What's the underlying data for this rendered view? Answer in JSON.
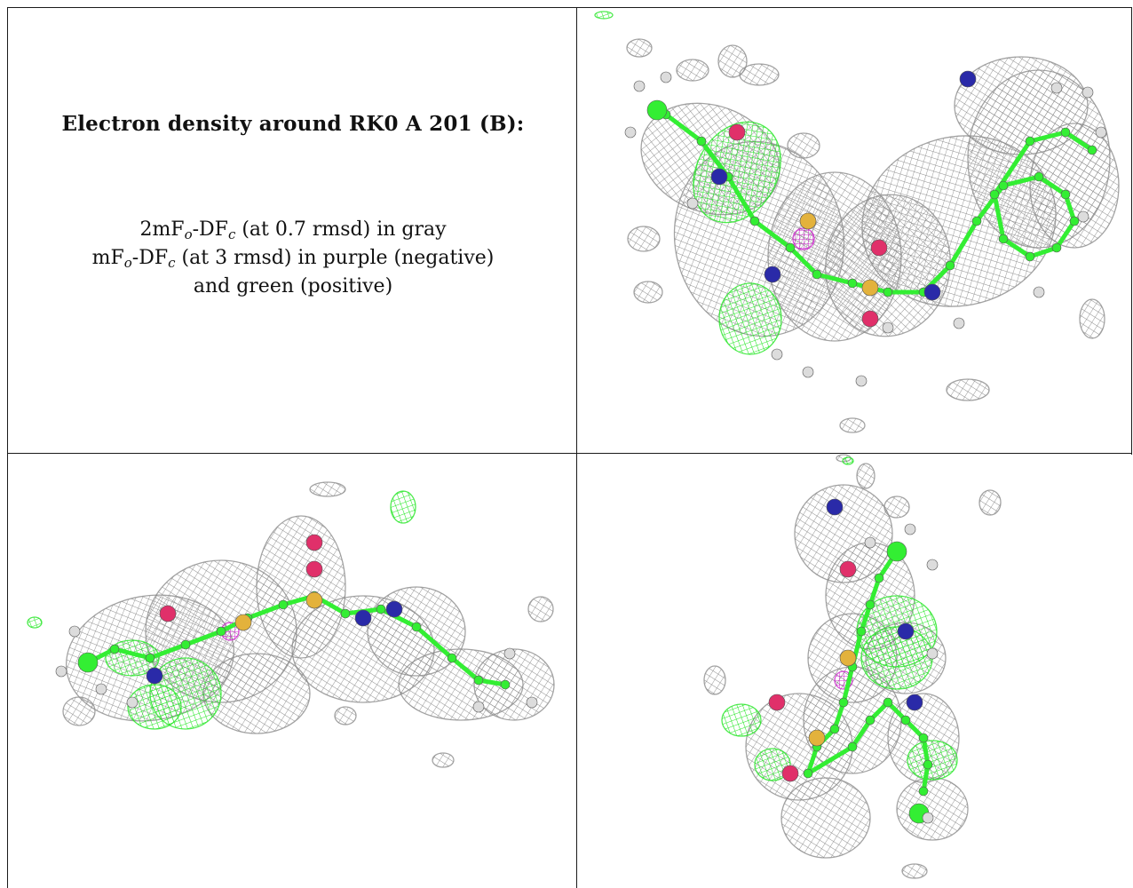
{
  "caption": {
    "title": "Electron density around RK0 A 201 (B):",
    "line1": {
      "prefix": "2mF",
      "sub1": "o",
      "mid": "-DF",
      "sub2": "c",
      "suffix": " (at 0.7 rmsd) in gray"
    },
    "line2": {
      "prefix": "mF",
      "sub1": "o",
      "mid": "-DF",
      "sub2": "c",
      "suffix": " (at 3 rmsd) in purple (negative)"
    },
    "line3": "and green (positive)"
  },
  "colors": {
    "mesh_gray": "#8c8c8c",
    "mesh_green": "#22e622",
    "mesh_purple": "#cc22cc",
    "carbon": "#33ee33",
    "nitrogen": "#2a2aa8",
    "oxygen": "#e0306a",
    "sulfur": "#e3b23c",
    "hydrogen": "#dcdcdc"
  },
  "views": [
    {
      "name": "view-top-right"
    },
    {
      "name": "view-bottom-left"
    },
    {
      "name": "view-bottom-right"
    }
  ]
}
